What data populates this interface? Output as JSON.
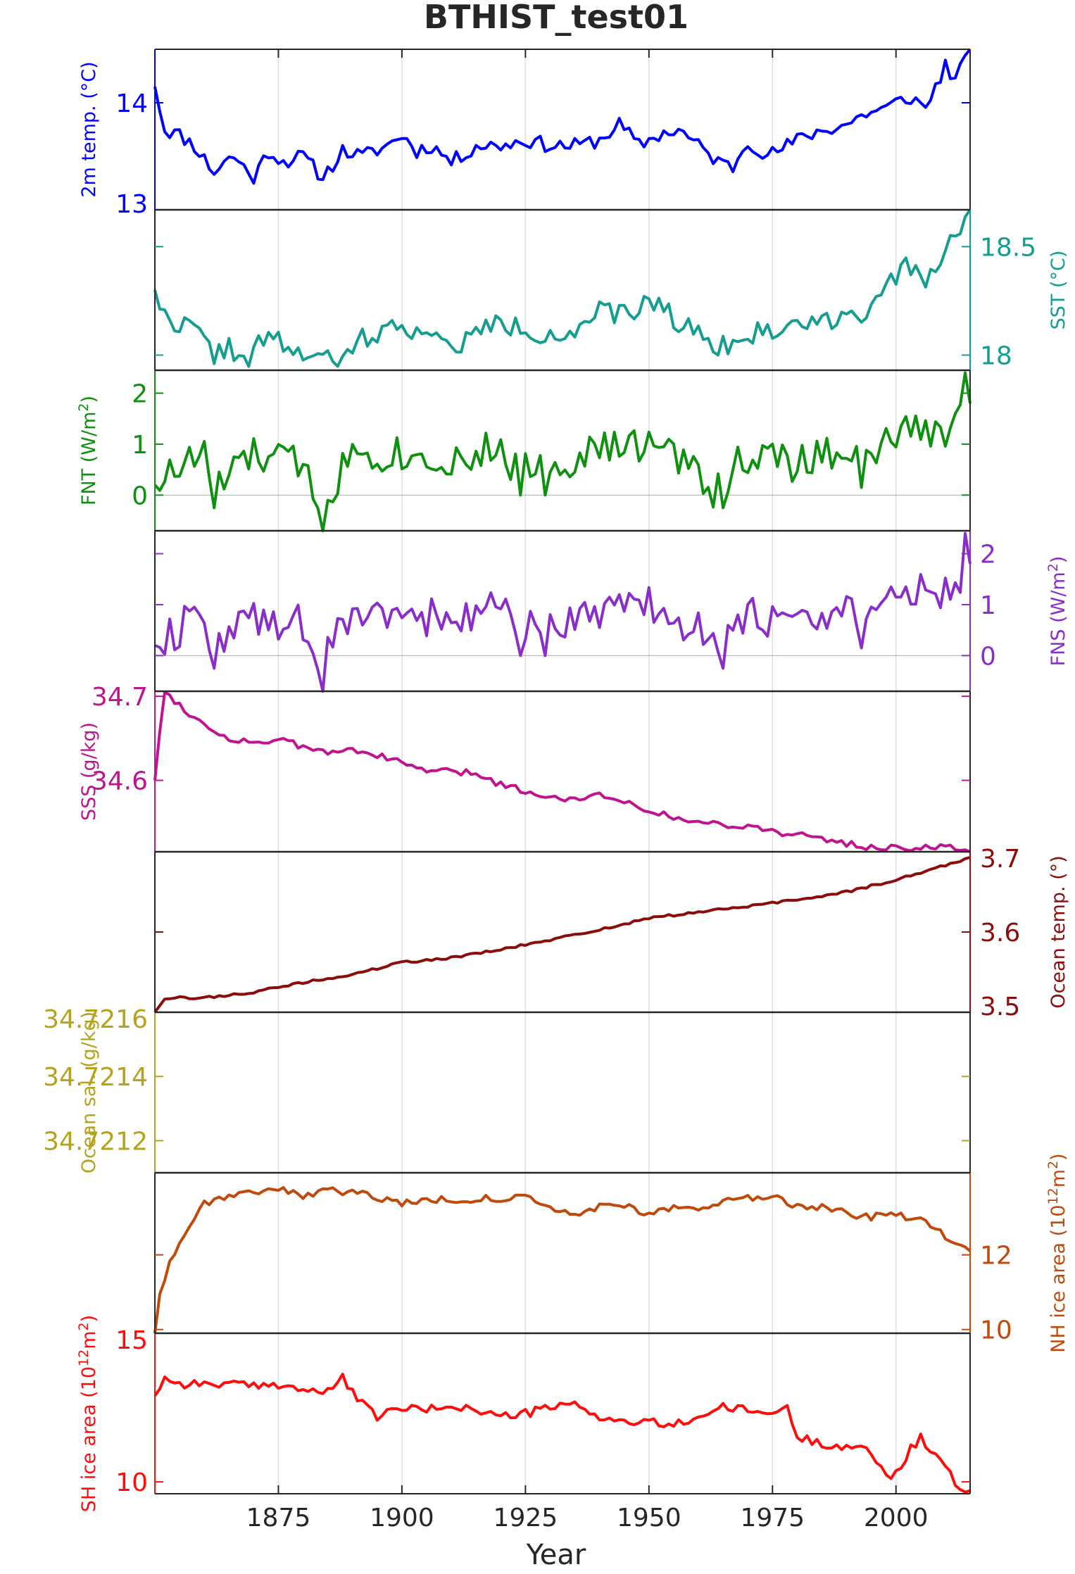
{
  "chart_data": {
    "type": "line",
    "title": "BTHIST_test01",
    "xlabel": "Year",
    "xlim": [
      1850,
      2015
    ],
    "x_ticks": [
      1875,
      1900,
      1925,
      1950,
      1975,
      2000
    ],
    "grid": true,
    "panels": [
      {
        "id": "t2m",
        "ylabel": "2m temp. (°C)",
        "ylabel_sup": "",
        "ylabel_suffix": "",
        "side": "left",
        "color": "#0000ff",
        "ylim": [
          13,
          14.5
        ],
        "y_ticks": [
          13,
          14
        ],
        "zero_line": false,
        "key_years": [
          1850,
          1852,
          1855,
          1858,
          1862,
          1864,
          1866,
          1870,
          1873,
          1876,
          1880,
          1884,
          1888,
          1892,
          1897,
          1900,
          1903,
          1906,
          1910,
          1912,
          1915,
          1920,
          1925,
          1930,
          1935,
          1940,
          1944,
          1948,
          1952,
          1956,
          1960,
          1964,
          1967,
          1970,
          1974,
          1978,
          1982,
          1986,
          1990,
          1994,
          1998,
          2000,
          2003,
          2006,
          2010,
          2012,
          2015
        ],
        "key_values": [
          14.15,
          13.75,
          13.7,
          13.6,
          13.35,
          13.45,
          13.5,
          13.3,
          13.55,
          13.45,
          13.5,
          13.3,
          13.55,
          13.5,
          13.6,
          13.7,
          13.55,
          13.6,
          13.45,
          13.5,
          13.6,
          13.6,
          13.65,
          13.6,
          13.6,
          13.65,
          13.8,
          13.6,
          13.7,
          13.75,
          13.6,
          13.45,
          13.4,
          13.65,
          13.5,
          13.6,
          13.7,
          13.75,
          13.8,
          13.9,
          13.95,
          14.0,
          14.05,
          13.95,
          14.35,
          14.2,
          14.5
        ],
        "noise": 0.07,
        "seed": 11,
        "series": [
          {
            "name": "",
            "years": [
              1850,
              2015
            ],
            "values": [
              14.15,
              14.5
            ]
          }
        ]
      },
      {
        "id": "sst",
        "ylabel": "SST (°C)",
        "ylabel_sup": "",
        "ylabel_suffix": "",
        "side": "right",
        "color": "#159e8f",
        "ylim": [
          17.93,
          18.67
        ],
        "y_ticks": [
          18,
          18.5
        ],
        "zero_line": false,
        "key_years": [
          1850,
          1852,
          1855,
          1858,
          1862,
          1865,
          1868,
          1872,
          1876,
          1880,
          1884,
          1888,
          1892,
          1896,
          1900,
          1904,
          1908,
          1912,
          1916,
          1920,
          1924,
          1928,
          1932,
          1936,
          1940,
          1944,
          1948,
          1952,
          1956,
          1960,
          1964,
          1968,
          1972,
          1976,
          1980,
          1985,
          1990,
          1994,
          1998,
          2002,
          2006,
          2010,
          2013,
          2015
        ],
        "key_values": [
          18.3,
          18.17,
          18.15,
          18.12,
          18.0,
          18.05,
          17.95,
          18.08,
          18.05,
          18.0,
          17.98,
          17.97,
          18.08,
          18.1,
          18.15,
          18.1,
          18.05,
          18.05,
          18.12,
          18.15,
          18.12,
          18.1,
          18.1,
          18.1,
          18.2,
          18.18,
          18.22,
          18.25,
          18.15,
          18.1,
          18.05,
          18.05,
          18.1,
          18.12,
          18.15,
          18.15,
          18.2,
          18.2,
          18.3,
          18.4,
          18.35,
          18.5,
          18.55,
          18.67
        ],
        "noise": 0.05,
        "seed": 22,
        "series": [
          {
            "name": "",
            "years": [
              1850,
              2015
            ],
            "values": [
              18.3,
              18.67
            ]
          }
        ]
      },
      {
        "id": "fnt",
        "ylabel": "FNT (W/m",
        "ylabel_sup": "2",
        "ylabel_suffix": ")",
        "side": "left",
        "color": "#109010",
        "ylim": [
          -0.7,
          2.45
        ],
        "y_ticks": [
          0,
          1,
          2
        ],
        "zero_line": true,
        "key_years": [
          1850,
          1860,
          1862,
          1870,
          1880,
          1884,
          1890,
          1900,
          1910,
          1920,
          1924,
          1928,
          1930,
          1940,
          1950,
          1960,
          1963,
          1970,
          1980,
          1990,
          1993,
          2000,
          2010,
          2013,
          2015
        ],
        "key_values": [
          0.2,
          0.85,
          0.1,
          0.8,
          0.6,
          -0.2,
          0.9,
          0.8,
          0.7,
          0.9,
          0.4,
          0.7,
          0.6,
          0.9,
          1.0,
          0.5,
          0.1,
          0.8,
          0.6,
          1.0,
          0.5,
          1.2,
          1.3,
          1.5,
          1.8
        ],
        "noise": 0.38,
        "seed": 33,
        "spikes": [
          [
            1862,
            -0.25
          ],
          [
            1884,
            -0.7
          ],
          [
            1924,
            0.0
          ],
          [
            1929,
            0.0
          ],
          [
            1965,
            -0.25
          ],
          [
            1993,
            0.15
          ],
          [
            2014,
            2.4
          ]
        ],
        "series": [
          {
            "name": "",
            "years": [
              1850,
              2015
            ],
            "values": [
              0.2,
              1.8
            ]
          }
        ]
      },
      {
        "id": "fns",
        "ylabel": "FNS (W/m",
        "ylabel_sup": "2",
        "ylabel_suffix": ")",
        "side": "right",
        "color": "#8a2ec9",
        "ylim": [
          -0.7,
          2.45
        ],
        "y_ticks": [
          0,
          1,
          2
        ],
        "zero_line": true,
        "key_years": [
          1850,
          1860,
          1862,
          1870,
          1880,
          1884,
          1890,
          1900,
          1910,
          1920,
          1924,
          1928,
          1930,
          1940,
          1950,
          1960,
          1963,
          1970,
          1980,
          1990,
          1993,
          2000,
          2010,
          2013,
          2015
        ],
        "key_values": [
          0.2,
          0.85,
          0.1,
          0.8,
          0.6,
          -0.2,
          0.9,
          0.8,
          0.7,
          0.9,
          0.4,
          0.7,
          0.6,
          0.9,
          1.0,
          0.5,
          0.1,
          0.8,
          0.6,
          1.0,
          0.5,
          1.2,
          1.3,
          1.5,
          1.8
        ],
        "noise": 0.38,
        "seed": 34,
        "spikes": [
          [
            1862,
            -0.25
          ],
          [
            1884,
            -0.7
          ],
          [
            1924,
            0.0
          ],
          [
            1929,
            0.0
          ],
          [
            1965,
            -0.25
          ],
          [
            1993,
            0.15
          ],
          [
            2014,
            2.4
          ]
        ],
        "series": [
          {
            "name": "",
            "years": [
              1850,
              2015
            ],
            "values": [
              0.2,
              1.8
            ]
          }
        ]
      },
      {
        "id": "sss",
        "ylabel": "SSS (g/kg)",
        "ylabel_sup": "",
        "ylabel_suffix": "",
        "side": "left",
        "color": "#c0148f",
        "ylim": [
          34.515,
          34.706
        ],
        "y_ticks": [
          34.6,
          34.7
        ],
        "zero_line": false,
        "key_years": [
          1850,
          1851,
          1852,
          1855,
          1860,
          1865,
          1870,
          1875,
          1880,
          1885,
          1890,
          1895,
          1900,
          1905,
          1910,
          1915,
          1920,
          1925,
          1930,
          1935,
          1940,
          1945,
          1950,
          1955,
          1960,
          1965,
          1970,
          1975,
          1980,
          1985,
          1990,
          1995,
          2000,
          2005,
          2010,
          2015
        ],
        "key_values": [
          34.6,
          34.66,
          34.705,
          34.69,
          34.665,
          34.65,
          34.645,
          34.648,
          34.64,
          34.632,
          34.638,
          34.63,
          34.62,
          34.612,
          34.61,
          34.608,
          34.595,
          34.588,
          34.578,
          34.58,
          34.582,
          34.576,
          34.565,
          34.555,
          34.55,
          34.548,
          34.545,
          34.54,
          34.535,
          34.53,
          34.525,
          34.52,
          34.52,
          34.52,
          34.52,
          34.515
        ],
        "noise": 0.004,
        "seed": 55,
        "series": [
          {
            "name": "",
            "years": [
              1850,
              2015
            ],
            "values": [
              34.6,
              34.515
            ]
          }
        ]
      },
      {
        "id": "otemp",
        "ylabel": "Ocean temp. (°)",
        "ylabel_sup": "",
        "ylabel_suffix": "",
        "side": "right",
        "color": "#8c0b0b",
        "ylim": [
          3.5,
          3.7
        ],
        "y_ticks": [
          3.5,
          3.6,
          3.7
        ],
        "zero_line": false,
        "key_years": [
          1850,
          1852,
          1860,
          1870,
          1880,
          1890,
          1900,
          1910,
          1920,
          1930,
          1940,
          1950,
          1960,
          1970,
          1980,
          1990,
          2000,
          2010,
          2015
        ],
        "key_values": [
          3.5,
          3.518,
          3.518,
          3.525,
          3.537,
          3.547,
          3.562,
          3.568,
          3.578,
          3.59,
          3.603,
          3.617,
          3.625,
          3.632,
          3.64,
          3.65,
          3.665,
          3.683,
          3.693
        ],
        "noise": 0.0015,
        "seed": 66,
        "series": [
          {
            "name": "",
            "years": [
              1850,
              2015
            ],
            "values": [
              3.5,
              3.693
            ]
          }
        ]
      },
      {
        "id": "osal",
        "ylabel": "Ocean sal. (g/kg)",
        "ylabel_sup": "",
        "ylabel_suffix": "",
        "side": "left",
        "color": "#b5a21e",
        "ylim": [
          34.7211,
          34.7216
        ],
        "y_ticks": [
          34.7212,
          34.7214,
          34.7216
        ],
        "zero_line": false,
        "key_years": [],
        "key_values": [],
        "noise": 0,
        "seed": 77,
        "series": []
      },
      {
        "id": "nhice",
        "ylabel": "NH ice area (10",
        "ylabel_sup": "12",
        "ylabel_suffix": "m",
        "ylabel_sup2": "2",
        "ylabel_suffix2": ")",
        "side": "right",
        "color": "#c04a0b",
        "ylim": [
          9.9,
          14.2
        ],
        "y_ticks": [
          10,
          12
        ],
        "zero_line": false,
        "key_years": [
          1850,
          1851,
          1852,
          1854,
          1857,
          1860,
          1865,
          1870,
          1875,
          1880,
          1885,
          1890,
          1900,
          1910,
          1920,
          1925,
          1930,
          1935,
          1940,
          1945,
          1950,
          1955,
          1960,
          1965,
          1970,
          1975,
          1980,
          1985,
          1990,
          1995,
          2000,
          2003,
          2006,
          2010,
          2013,
          2015
        ],
        "key_values": [
          9.9,
          11.0,
          11.4,
          12.1,
          12.8,
          13.4,
          13.6,
          13.7,
          13.8,
          13.6,
          13.7,
          13.7,
          13.4,
          13.5,
          13.5,
          13.55,
          13.2,
          13.1,
          13.3,
          13.3,
          13.1,
          13.3,
          13.2,
          13.4,
          13.5,
          13.6,
          13.3,
          13.3,
          13.1,
          13.0,
          13.1,
          12.9,
          12.9,
          12.5,
          12.3,
          12.1
        ],
        "noise": 0.1,
        "seed": 88,
        "series": [
          {
            "name": "",
            "years": [
              1850,
              2015
            ],
            "values": [
              9.9,
              12.1
            ]
          }
        ]
      },
      {
        "id": "shice",
        "ylabel": "SH ice area (10",
        "ylabel_sup": "12",
        "ylabel_suffix": "m",
        "ylabel_sup2": "2",
        "ylabel_suffix2": ")",
        "side": "left",
        "color": "#ff0d0d",
        "ylim": [
          9.6,
          15
        ],
        "y_ticks": [
          10,
          15
        ],
        "zero_line": false,
        "key_years": [
          1850,
          1852,
          1855,
          1860,
          1865,
          1870,
          1875,
          1880,
          1885,
          1888,
          1892,
          1895,
          1900,
          1905,
          1910,
          1915,
          1920,
          1925,
          1930,
          1935,
          1940,
          1945,
          1950,
          1955,
          1960,
          1965,
          1970,
          1975,
          1978,
          1980,
          1985,
          1990,
          1995,
          1998,
          2000,
          2003,
          2005,
          2007,
          2010,
          2012,
          2013,
          2015
        ],
        "key_values": [
          12.9,
          13.5,
          13.3,
          13.3,
          13.3,
          13.2,
          13.3,
          13.1,
          13.0,
          13.5,
          12.6,
          12.2,
          12.5,
          12.4,
          12.6,
          12.4,
          12.2,
          12.3,
          12.5,
          12.6,
          12.2,
          12.0,
          12.0,
          11.9,
          12.2,
          12.5,
          12.4,
          12.3,
          12.5,
          11.5,
          11.3,
          11.2,
          11.0,
          10.2,
          10.3,
          11.1,
          11.5,
          11.0,
          10.5,
          10.0,
          9.6,
          9.7
        ],
        "noise": 0.15,
        "seed": 99,
        "series": [
          {
            "name": "",
            "years": [
              1850,
              2015
            ],
            "values": [
              12.9,
              9.7
            ]
          }
        ]
      }
    ]
  }
}
